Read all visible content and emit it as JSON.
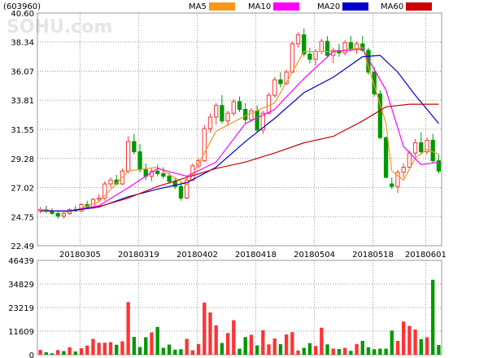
{
  "stock_code": "(603960)",
  "watermark": "SOHU.com",
  "legend": [
    {
      "label": "MA5",
      "color": "#f7981d"
    },
    {
      "label": "MA10",
      "color": "#ff00ff"
    },
    {
      "label": "MA20",
      "color": "#0000cc"
    },
    {
      "label": "MA60",
      "color": "#cc0000"
    }
  ],
  "colors": {
    "up": "#ff3333",
    "down": "#009900",
    "grid": "#999999"
  },
  "chart_data": [
    {
      "type": "candlestick",
      "title": "(603960)",
      "y_ticks": [
        "40.60",
        "38.34",
        "36.07",
        "33.81",
        "31.55",
        "29.28",
        "27.02",
        "24.75",
        "22.49"
      ],
      "ylim": [
        22.49,
        40.6
      ],
      "x_ticks": [
        "20180305",
        "20180319",
        "20180402",
        "20180418",
        "20180504",
        "20180518",
        "20180601"
      ],
      "grid": true,
      "candles": [
        [
          25.2,
          25.5,
          25.0,
          25.3
        ],
        [
          25.3,
          25.6,
          25.0,
          25.2
        ],
        [
          25.2,
          25.4,
          24.9,
          25.0
        ],
        [
          25.0,
          25.2,
          24.6,
          24.8
        ],
        [
          24.8,
          25.1,
          24.6,
          25.0
        ],
        [
          25.0,
          25.4,
          24.9,
          25.3
        ],
        [
          25.3,
          25.6,
          25.1,
          25.2
        ],
        [
          25.2,
          25.8,
          25.1,
          25.7
        ],
        [
          25.7,
          26.0,
          25.4,
          25.5
        ],
        [
          25.5,
          26.2,
          25.4,
          26.1
        ],
        [
          26.1,
          26.5,
          25.9,
          26.2
        ],
        [
          26.2,
          27.5,
          26.0,
          27.3
        ],
        [
          27.3,
          27.8,
          27.0,
          27.6
        ],
        [
          27.6,
          28.0,
          27.2,
          27.3
        ],
        [
          27.3,
          28.5,
          27.2,
          28.3
        ],
        [
          28.3,
          31.0,
          28.1,
          30.6
        ],
        [
          30.6,
          31.2,
          29.6,
          29.8
        ],
        [
          29.8,
          30.4,
          28.2,
          28.4
        ],
        [
          28.4,
          28.9,
          27.6,
          27.9
        ],
        [
          27.9,
          28.5,
          27.5,
          28.3
        ],
        [
          28.3,
          28.8,
          27.9,
          28.1
        ],
        [
          28.1,
          28.6,
          27.7,
          27.9
        ],
        [
          27.9,
          28.2,
          27.3,
          27.5
        ],
        [
          27.5,
          27.8,
          26.9,
          27.1
        ],
        [
          27.1,
          27.4,
          26.0,
          26.2
        ],
        [
          26.2,
          27.8,
          26.1,
          27.6
        ],
        [
          27.6,
          28.9,
          27.5,
          28.7
        ],
        [
          28.7,
          29.3,
          28.5,
          29.1
        ],
        [
          29.1,
          31.9,
          29.0,
          31.6
        ],
        [
          31.6,
          32.8,
          31.3,
          32.5
        ],
        [
          32.5,
          33.6,
          31.9,
          33.4
        ],
        [
          33.4,
          34.2,
          32.0,
          32.2
        ],
        [
          32.2,
          33.0,
          31.8,
          32.8
        ],
        [
          32.8,
          33.9,
          32.6,
          33.7
        ],
        [
          33.7,
          34.1,
          32.9,
          33.1
        ],
        [
          33.1,
          33.6,
          32.0,
          32.3
        ],
        [
          32.3,
          33.2,
          32.1,
          33.0
        ],
        [
          33.0,
          33.4,
          31.3,
          31.5
        ],
        [
          31.5,
          33.0,
          31.2,
          32.8
        ],
        [
          32.8,
          34.4,
          32.7,
          34.2
        ],
        [
          34.2,
          35.6,
          34.0,
          35.4
        ],
        [
          35.4,
          36.0,
          34.8,
          35.1
        ],
        [
          35.1,
          36.2,
          35.0,
          36.0
        ],
        [
          36.0,
          38.4,
          35.9,
          38.2
        ],
        [
          38.2,
          39.1,
          37.9,
          38.9
        ],
        [
          38.9,
          39.4,
          37.2,
          37.4
        ],
        [
          37.4,
          37.9,
          36.7,
          37.0
        ],
        [
          37.0,
          37.8,
          36.5,
          37.6
        ],
        [
          37.6,
          38.6,
          37.4,
          38.4
        ],
        [
          38.4,
          38.8,
          37.1,
          37.3
        ],
        [
          37.3,
          37.9,
          36.7,
          37.7
        ],
        [
          37.7,
          38.2,
          37.2,
          37.5
        ],
        [
          37.5,
          38.5,
          37.3,
          38.3
        ],
        [
          38.3,
          38.8,
          37.6,
          37.8
        ],
        [
          37.8,
          38.4,
          37.4,
          38.2
        ],
        [
          38.2,
          38.8,
          37.6,
          37.7
        ],
        [
          37.7,
          37.9,
          35.8,
          36.0
        ],
        [
          36.0,
          36.4,
          34.1,
          34.3
        ],
        [
          34.3,
          34.6,
          30.8,
          30.9
        ],
        [
          30.9,
          31.0,
          27.8,
          27.8
        ],
        [
          27.3,
          27.8,
          26.9,
          27.1
        ],
        [
          27.1,
          28.4,
          26.6,
          28.2
        ],
        [
          28.2,
          28.9,
          27.8,
          28.6
        ],
        [
          28.6,
          29.9,
          28.4,
          29.7
        ],
        [
          29.7,
          30.8,
          29.4,
          30.5
        ],
        [
          30.5,
          31.3,
          29.6,
          29.8
        ],
        [
          29.8,
          30.9,
          29.6,
          30.7
        ],
        [
          30.7,
          31.2,
          28.9,
          29.1
        ],
        [
          29.1,
          29.6,
          28.1,
          28.3
        ]
      ],
      "ma": {
        "MA5": [
          [
            0,
            25.3
          ],
          [
            5,
            25.1
          ],
          [
            10,
            25.9
          ],
          [
            15,
            28.3
          ],
          [
            20,
            28.6
          ],
          [
            25,
            27.2
          ],
          [
            30,
            31.4
          ],
          [
            35,
            32.6
          ],
          [
            40,
            33.6
          ],
          [
            45,
            37.6
          ],
          [
            50,
            37.6
          ],
          [
            55,
            37.9
          ],
          [
            59,
            32.0
          ],
          [
            60,
            28.3
          ],
          [
            62,
            27.6
          ],
          [
            64,
            29.3
          ],
          [
            66,
            30.0
          ],
          [
            68,
            29.6
          ]
        ],
        "MA10": [
          [
            0,
            25.2
          ],
          [
            5,
            25.2
          ],
          [
            10,
            25.6
          ],
          [
            15,
            27.0
          ],
          [
            20,
            28.5
          ],
          [
            25,
            27.9
          ],
          [
            30,
            29.0
          ],
          [
            35,
            32.0
          ],
          [
            40,
            33.1
          ],
          [
            45,
            35.5
          ],
          [
            50,
            37.6
          ],
          [
            55,
            37.8
          ],
          [
            59,
            34.6
          ],
          [
            62,
            30.2
          ],
          [
            65,
            28.8
          ],
          [
            68,
            29.0
          ]
        ],
        "MA20": [
          [
            0,
            25.2
          ],
          [
            5,
            25.2
          ],
          [
            10,
            25.5
          ],
          [
            15,
            26.3
          ],
          [
            20,
            26.9
          ],
          [
            25,
            27.4
          ],
          [
            30,
            28.6
          ],
          [
            35,
            30.6
          ],
          [
            40,
            32.4
          ],
          [
            45,
            34.4
          ],
          [
            50,
            35.6
          ],
          [
            55,
            37.2
          ],
          [
            58,
            37.3
          ],
          [
            61,
            36.0
          ],
          [
            64,
            34.2
          ],
          [
            68,
            32.0
          ]
        ],
        "MA60": [
          [
            9,
            25.4
          ],
          [
            15,
            26.2
          ],
          [
            20,
            27.1
          ],
          [
            25,
            27.8
          ],
          [
            30,
            28.5
          ],
          [
            35,
            29.0
          ],
          [
            40,
            29.7
          ],
          [
            45,
            30.5
          ],
          [
            50,
            31.0
          ],
          [
            55,
            32.2
          ],
          [
            59,
            33.3
          ],
          [
            63,
            33.5
          ],
          [
            68,
            33.5
          ]
        ]
      }
    },
    {
      "type": "bar",
      "title": "",
      "y_ticks": [
        "46439",
        "34829",
        "23219",
        "11609",
        "0"
      ],
      "ylim": [
        0,
        46439
      ],
      "values": [
        2400,
        1200,
        700,
        2300,
        1800,
        3700,
        1600,
        3200,
        4500,
        7800,
        5900,
        5900,
        6200,
        4900,
        6600,
        25900,
        8800,
        3800,
        8600,
        11000,
        13700,
        3400,
        5000,
        2500,
        2700,
        7800,
        2200,
        5200,
        25700,
        20800,
        14500,
        5800,
        10700,
        17000,
        3000,
        8700,
        9800,
        4600,
        12100,
        5100,
        8000,
        5200,
        10000,
        11100,
        2100,
        3400,
        5700,
        4300,
        13300,
        5100,
        3000,
        2800,
        3400,
        1900,
        5300,
        6800,
        3700,
        2700,
        3000,
        3000,
        11900,
        6800,
        16300,
        14200,
        12400,
        7700,
        8600,
        36900,
        4800
      ],
      "colors": [
        "up",
        "down",
        "down",
        "up",
        "down",
        "up",
        "down",
        "up",
        "up",
        "up",
        "up",
        "up",
        "up",
        "down",
        "up",
        "up",
        "down",
        "down",
        "down",
        "up",
        "down",
        "down",
        "down",
        "down",
        "down",
        "up",
        "up",
        "up",
        "up",
        "up",
        "up",
        "down",
        "up",
        "up",
        "down",
        "down",
        "up",
        "down",
        "up",
        "up",
        "up",
        "down",
        "up",
        "up",
        "up",
        "down",
        "down",
        "up",
        "up",
        "down",
        "up",
        "down",
        "up",
        "down",
        "up",
        "down",
        "down",
        "down",
        "down",
        "down",
        "down",
        "up",
        "up",
        "up",
        "up",
        "down",
        "up",
        "down",
        "down"
      ]
    }
  ]
}
